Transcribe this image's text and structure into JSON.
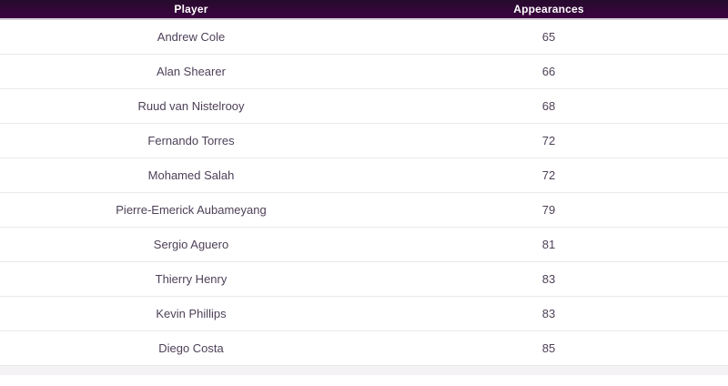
{
  "chart_data": {
    "type": "table",
    "title": "",
    "columns": [
      "Player",
      "Appearances"
    ],
    "rows": [
      {
        "player": "Andrew Cole",
        "appearances": "65"
      },
      {
        "player": "Alan Shearer",
        "appearances": "66"
      },
      {
        "player": "Ruud van Nistelrooy",
        "appearances": "68"
      },
      {
        "player": "Fernando Torres",
        "appearances": "72"
      },
      {
        "player": "Mohamed Salah",
        "appearances": "72"
      },
      {
        "player": "Pierre-Emerick Aubameyang",
        "appearances": "79"
      },
      {
        "player": "Sergio Aguero",
        "appearances": "81"
      },
      {
        "player": "Thierry Henry",
        "appearances": "83"
      },
      {
        "player": "Kevin Phillips",
        "appearances": "83"
      },
      {
        "player": "Diego Costa",
        "appearances": "85"
      }
    ]
  },
  "colors": {
    "header-bg-top": "#260b2c",
    "header-bg-bottom": "#3c0442",
    "header-text": "#ffffff",
    "row-text": "#4e4158",
    "row-bg": "#ffffff",
    "row-border": "#ebe9ec",
    "header-border": "#d7d2d9",
    "footer-strip": "#f4f2f4"
  }
}
